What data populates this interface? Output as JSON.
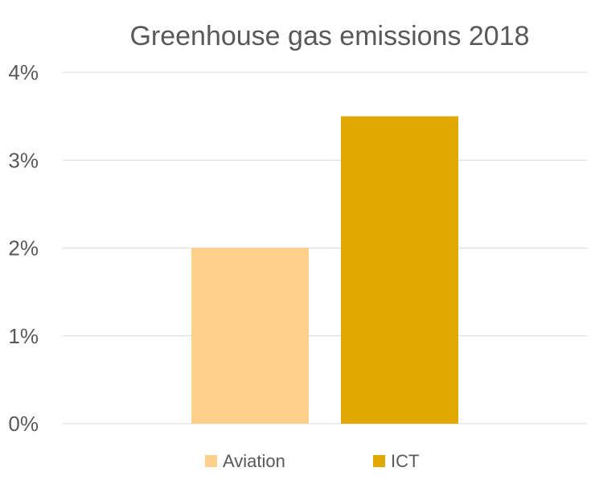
{
  "chart_data": {
    "type": "bar",
    "title": "Greenhouse gas emissions 2018",
    "xlabel": "",
    "ylabel": "",
    "ylim": [
      0,
      4
    ],
    "yticks": [
      0,
      1,
      2,
      3,
      4
    ],
    "ytick_labels": [
      "0%",
      "1%",
      "2%",
      "3%",
      "4%"
    ],
    "grid": true,
    "legend_position": "bottom",
    "series": [
      {
        "name": "Aviation",
        "value": 2.0,
        "color": "#FFD08A"
      },
      {
        "name": "ICT",
        "value": 3.5,
        "color": "#E0A800"
      }
    ]
  }
}
